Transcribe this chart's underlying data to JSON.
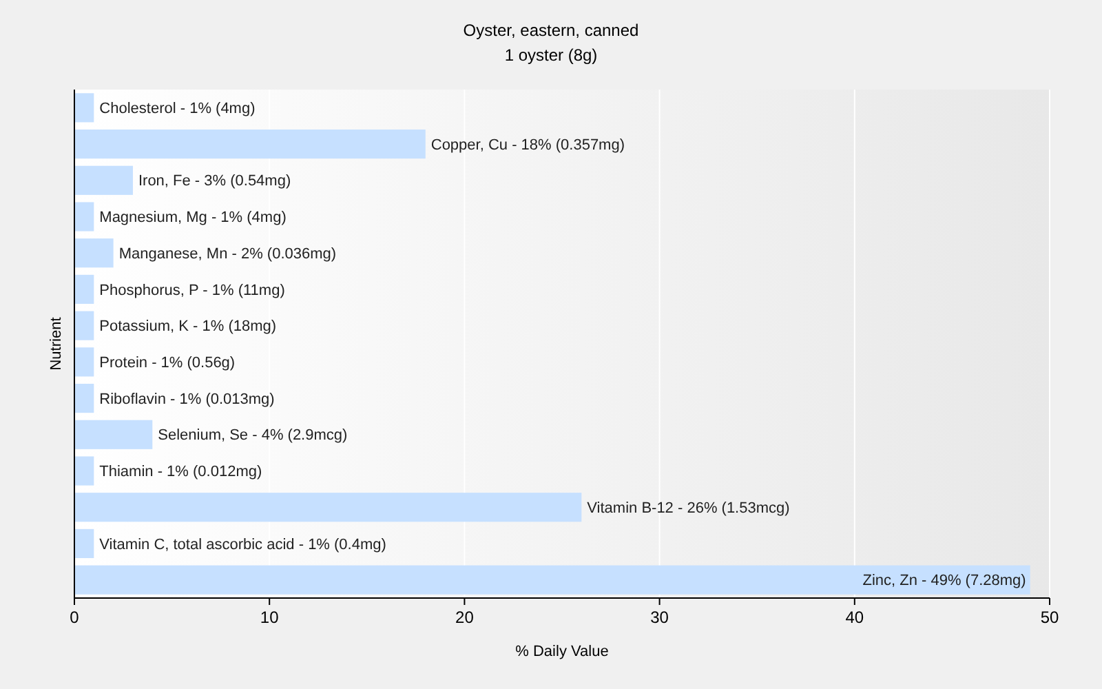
{
  "chart_data": {
    "type": "bar",
    "orientation": "horizontal",
    "title": "Oyster, eastern, canned",
    "subtitle": "1 oyster (8g)",
    "xlabel": "% Daily Value",
    "ylabel": "Nutrient",
    "categories": [
      "Cholesterol - 1% (4mg)",
      "Copper, Cu - 18% (0.357mg)",
      "Iron, Fe - 3% (0.54mg)",
      "Magnesium, Mg - 1% (4mg)",
      "Manganese, Mn - 2% (0.036mg)",
      "Phosphorus, P - 1% (11mg)",
      "Potassium, K - 1% (18mg)",
      "Protein - 1% (0.56g)",
      "Riboflavin - 1% (0.013mg)",
      "Selenium, Se - 4% (2.9mcg)",
      "Thiamin - 1% (0.012mg)",
      "Vitamin B-12 - 26% (1.53mcg)",
      "Vitamin C, total ascorbic acid - 1% (0.4mg)",
      "Zinc, Zn - 49% (7.28mg)"
    ],
    "values": [
      1,
      18,
      3,
      1,
      2,
      1,
      1,
      1,
      1,
      4,
      1,
      26,
      1,
      49
    ],
    "color": "#c6e0ff",
    "xlim": [
      0,
      50
    ],
    "xticks": [
      0,
      10,
      20,
      30,
      40,
      50
    ],
    "grid": "x"
  }
}
